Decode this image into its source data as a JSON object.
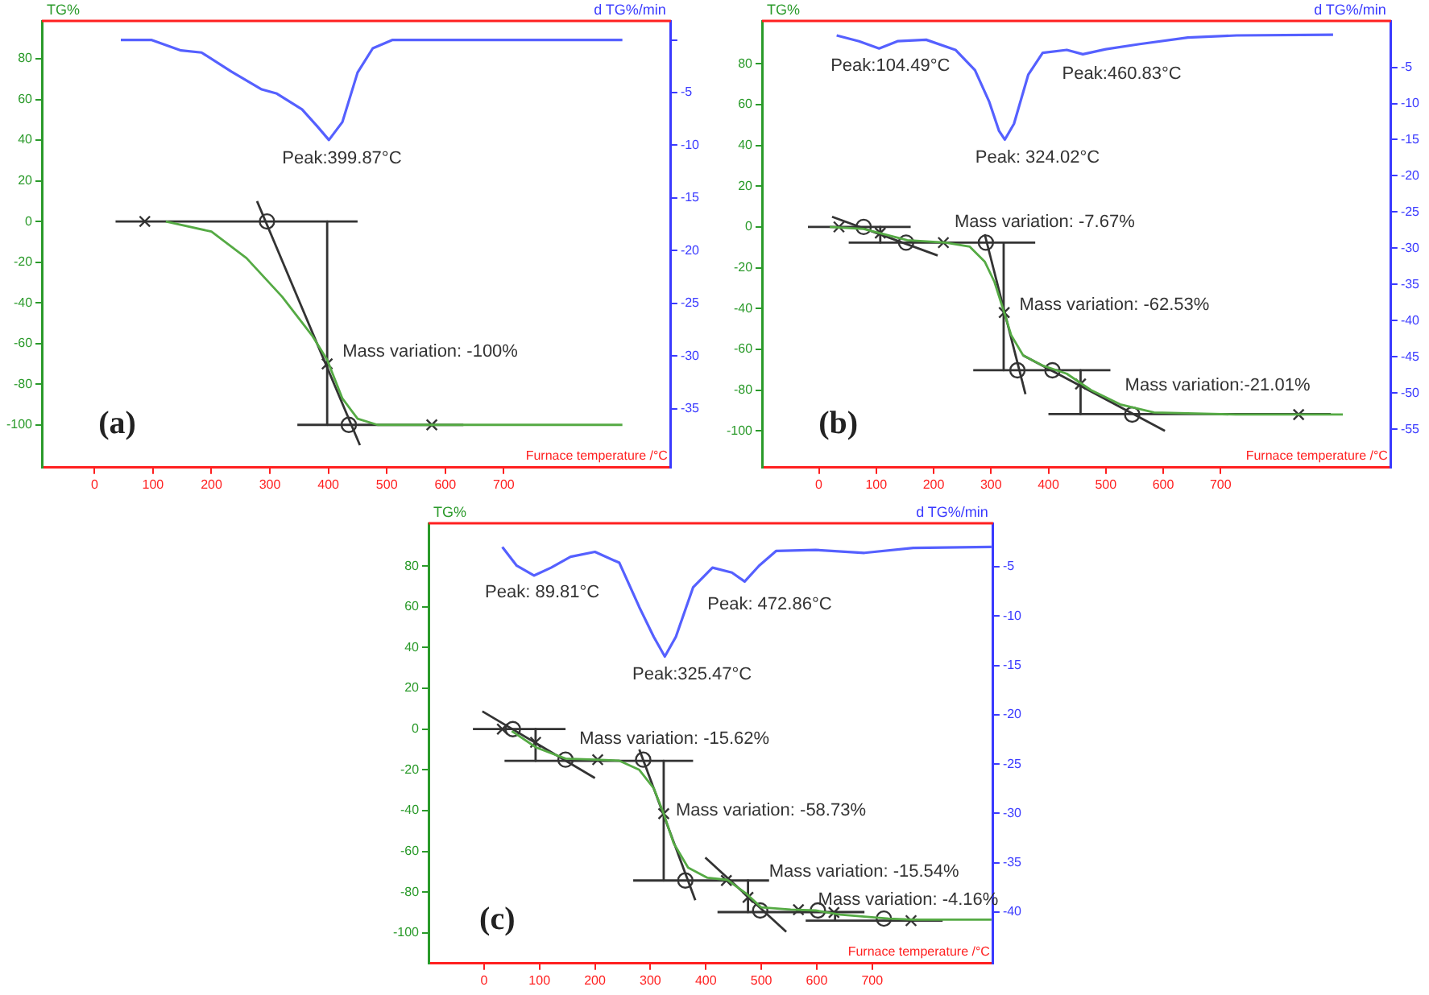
{
  "chart_data": [
    {
      "type": "line",
      "xlabel": "Furnace temperature /°C",
      "ylabel": "TG%",
      "y2label": "d TG%/min",
      "xlim": [
        -90,
        986
      ],
      "xticks": [
        0,
        100,
        200,
        300,
        400,
        500,
        600,
        700
      ],
      "ylim": [
        -121,
        98.6
      ],
      "yticks": [
        80,
        60,
        40,
        20,
        0,
        -20,
        -40,
        -60,
        -80,
        -100
      ],
      "y2lim": [
        -40.6,
        1.8
      ],
      "y2ticks": [
        {
          "value": 0,
          "label": null
        },
        -5,
        -10,
        -15,
        -20,
        -25,
        -30,
        -35
      ],
      "grid": false,
      "legend": false,
      "series": [
        {
          "type": "line",
          "axis": "y2",
          "color": "#5560ff",
          "x": [
            45,
            97,
            148,
            183,
            234,
            286,
            312,
            355,
            381,
            401,
            424,
            450,
            476,
            510,
            903
          ],
          "values": [
            0,
            0,
            -1.0,
            -1.2,
            -3.0,
            -4.7,
            -5.1,
            -6.6,
            -8.2,
            -9.5,
            -7.8,
            -3.1,
            -0.8,
            0,
            0
          ]
        },
        {
          "type": "line",
          "color": "#55aa44",
          "x": [
            122,
            200,
            260,
            321,
            372,
            398,
            424,
            450,
            484,
            903
          ],
          "values": [
            0,
            -5,
            -18,
            -37,
            -56,
            -68,
            -87,
            -97,
            -100,
            -100
          ]
        },
        {
          "type": "line",
          "color": "#333333",
          "x": [
            36,
            450
          ],
          "values": [
            0,
            0
          ]
        },
        {
          "type": "line",
          "color": "#333333",
          "x": [
            347,
            631
          ],
          "values": [
            -100,
            -100
          ]
        },
        {
          "type": "line",
          "color": "#333333",
          "x": [
            278,
            454
          ],
          "values": [
            10,
            -110
          ]
        },
        {
          "type": "line",
          "color": "#333333",
          "x": [
            398,
            398
          ],
          "values": [
            0,
            -100
          ]
        },
        {
          "type": "scatter",
          "marker": "cross",
          "color": "#333333",
          "x": [
            86,
            398,
            577
          ],
          "values": [
            0,
            -70,
            -100
          ]
        },
        {
          "type": "scatter",
          "marker": "circle",
          "color": "#333333",
          "x": [
            295,
            435
          ],
          "values": [
            0,
            -100
          ]
        }
      ],
      "annotations": [
        "Peak:399.87°C",
        "Mass variation: -100%",
        "(a)"
      ]
    },
    {
      "type": "line",
      "xlabel": "Furnace temperature /°C",
      "ylabel": "TG%",
      "y2label": "d TG%/min",
      "xlim": [
        -99,
        997
      ],
      "xticks": [
        0,
        100,
        200,
        300,
        400,
        500,
        600,
        700
      ],
      "ylim": [
        -118,
        101
      ],
      "yticks": [
        80,
        60,
        40,
        20,
        0,
        -20,
        -40,
        -60,
        -80,
        -100
      ],
      "y2lim": [
        -60.3,
        1.4
      ],
      "y2ticks": [
        -5,
        -10,
        -15,
        -20,
        -25,
        -30,
        -35,
        -40,
        -45,
        -50,
        -55
      ],
      "grid": false,
      "legend": false,
      "series": [
        {
          "type": "line",
          "axis": "y2",
          "color": "#5560ff",
          "x": [
            31,
            70,
            105,
            137,
            187,
            238,
            272,
            297,
            314,
            324,
            340,
            365,
            390,
            432,
            460,
            500,
            559,
            643,
            728,
            896
          ],
          "values": [
            -0.6,
            -1.4,
            -2.4,
            -1.4,
            -1.2,
            -2.6,
            -5.4,
            -9.8,
            -13.8,
            -15,
            -12.8,
            -6.0,
            -3.0,
            -2.6,
            -3.2,
            -2.5,
            -1.8,
            -0.9,
            -0.6,
            -0.5
          ]
        },
        {
          "type": "line",
          "color": "#55aa44",
          "x": [
            19,
            78,
            154,
            221,
            263,
            289,
            306,
            323,
            335,
            356,
            390,
            432,
            474,
            525,
            584,
            726,
            913
          ],
          "values": [
            0,
            -1,
            -6.5,
            -7.7,
            -9.7,
            -17,
            -27,
            -42,
            -53,
            -63,
            -68,
            -72,
            -80,
            -87,
            -91,
            -92,
            -92
          ]
        },
        {
          "type": "line",
          "color": "#333333",
          "x": [
            -19,
            160
          ],
          "values": [
            0,
            0
          ]
        },
        {
          "type": "line",
          "color": "#333333",
          "x": [
            52,
            377
          ],
          "values": [
            -7.7,
            -7.7
          ]
        },
        {
          "type": "line",
          "color": "#333333",
          "x": [
            269,
            508
          ],
          "values": [
            -70.3,
            -70.3
          ]
        },
        {
          "type": "line",
          "color": "#333333",
          "x": [
            400,
            892
          ],
          "values": [
            -91.8,
            -91.8
          ]
        },
        {
          "type": "line",
          "color": "#333333",
          "x": [
            23,
            207
          ],
          "values": [
            5,
            -14
          ]
        },
        {
          "type": "line",
          "color": "#333333",
          "x": [
            289,
            360
          ],
          "values": [
            -3.6,
            -82
          ]
        },
        {
          "type": "line",
          "color": "#333333",
          "x": [
            356,
            603
          ],
          "values": [
            -63,
            -100
          ]
        },
        {
          "type": "line",
          "color": "#333333",
          "x": [
            107,
            107
          ],
          "values": [
            0,
            -7.7
          ]
        },
        {
          "type": "line",
          "color": "#333333",
          "x": [
            322,
            322
          ],
          "values": [
            -7.7,
            -70.3
          ]
        },
        {
          "type": "line",
          "color": "#333333",
          "x": [
            456,
            456
          ],
          "values": [
            -70.3,
            -91.8
          ]
        },
        {
          "type": "scatter",
          "marker": "cross",
          "color": "#333333",
          "x": [
            35,
            107,
            217,
            323,
            456,
            836
          ],
          "values": [
            0,
            -3,
            -7.7,
            -42,
            -77,
            -92
          ]
        },
        {
          "type": "scatter",
          "marker": "circle",
          "color": "#333333",
          "x": [
            78,
            152,
            291,
            346,
            407,
            546
          ],
          "values": [
            0,
            -7.7,
            -7.7,
            -70.3,
            -70.3,
            -92
          ]
        }
      ],
      "annotations": [
        "Peak:104.49°C",
        "Peak: 324.02°C",
        "Peak:460.83°C",
        "Mass variation: -7.67%",
        "Mass variation: -62.53%",
        "Mass variation:-21.01%",
        "(b)"
      ]
    },
    {
      "type": "line",
      "xlabel": "Furnace temperature /°C",
      "ylabel": "TG%",
      "y2label": "d TG%/min",
      "xlim": [
        -100,
        918
      ],
      "xticks": [
        0,
        100,
        200,
        300,
        400,
        500,
        600,
        700
      ],
      "ylim": [
        -115,
        101
      ],
      "yticks": [
        80,
        60,
        40,
        20,
        0,
        -20,
        -40,
        -60,
        -80,
        -100
      ],
      "y2lim": [
        -45.2,
        -0.6
      ],
      "y2ticks": [
        -5,
        -10,
        -15,
        -20,
        -25,
        -30,
        -35,
        -40
      ],
      "grid": false,
      "legend": false,
      "series": [
        {
          "type": "line",
          "axis": "y2",
          "color": "#5560ff",
          "x": [
            33,
            59,
            90,
            121,
            156,
            200,
            244,
            280,
            306,
            326,
            346,
            377,
            412,
            447,
            470,
            496,
            527,
            598,
            686,
            774,
            915
          ],
          "values": [
            -3.0,
            -4.9,
            -5.9,
            -5.1,
            -4.0,
            -3.5,
            -4.6,
            -9.1,
            -12.1,
            -14.1,
            -12.1,
            -7.1,
            -5.1,
            -5.6,
            -6.5,
            -4.9,
            -3.4,
            -3.3,
            -3.6,
            -3.1,
            -3.0
          ]
        },
        {
          "type": "line",
          "color": "#55aa44",
          "x": [
            50,
            94,
            147,
            200,
            244,
            280,
            306,
            324,
            342,
            368,
            403,
            439,
            474,
            500,
            553,
            598,
            642,
            730,
            774,
            915
          ],
          "values": [
            -1,
            -9,
            -14.5,
            -15,
            -15.5,
            -20,
            -29,
            -41.5,
            -56,
            -68,
            -73,
            -74,
            -81,
            -87.5,
            -88.6,
            -89,
            -91,
            -93,
            -93.5,
            -93.5
          ]
        },
        {
          "type": "line",
          "color": "#333333",
          "x": [
            -20,
            147
          ],
          "values": [
            0,
            0
          ]
        },
        {
          "type": "line",
          "color": "#333333",
          "x": [
            37,
            377
          ],
          "values": [
            -15.6,
            -15.6
          ]
        },
        {
          "type": "line",
          "color": "#333333",
          "x": [
            269,
            514
          ],
          "values": [
            -74.3,
            -74.3
          ]
        },
        {
          "type": "line",
          "color": "#333333",
          "x": [
            421,
            686
          ],
          "values": [
            -89.8,
            -89.8
          ]
        },
        {
          "type": "line",
          "color": "#333333",
          "x": [
            580,
            827
          ],
          "values": [
            -94,
            -94
          ]
        },
        {
          "type": "line",
          "color": "#333333",
          "x": [
            -3,
            200
          ],
          "values": [
            8.7,
            -24
          ]
        },
        {
          "type": "line",
          "color": "#333333",
          "x": [
            280,
            381
          ],
          "values": [
            -10,
            -84
          ]
        },
        {
          "type": "line",
          "color": "#333333",
          "x": [
            399,
            545
          ],
          "values": [
            -63,
            -99.5
          ]
        },
        {
          "type": "line",
          "color": "#333333",
          "x": [
            93,
            93
          ],
          "values": [
            0,
            -15.6
          ]
        },
        {
          "type": "line",
          "color": "#333333",
          "x": [
            324,
            324
          ],
          "values": [
            -15.6,
            -74.3
          ]
        },
        {
          "type": "line",
          "color": "#333333",
          "x": [
            476,
            476
          ],
          "values": [
            -74.3,
            -89.8
          ]
        },
        {
          "type": "line",
          "color": "#333333",
          "x": [
            633,
            633
          ],
          "values": [
            -89.8,
            -94
          ]
        },
        {
          "type": "scatter",
          "marker": "cross",
          "color": "#333333",
          "x": [
            33,
            93,
            205,
            324,
            437,
            476,
            567,
            631,
            770
          ],
          "values": [
            0,
            -6.5,
            -15,
            -41.5,
            -74.3,
            -82.6,
            -88.6,
            -90,
            -94
          ]
        },
        {
          "type": "scatter",
          "marker": "circle",
          "color": "#333333",
          "x": [
            52,
            147,
            287,
            363,
            498,
            602,
            721
          ],
          "values": [
            0,
            -15,
            -15,
            -74.3,
            -89,
            -89,
            -93
          ]
        }
      ],
      "annotations": [
        "Peak: 89.81°C",
        "Peak:325.47°C",
        "Peak: 472.86°C",
        "Mass variation: -15.62%",
        "Mass variation: -58.73%",
        "Mass variation: -15.54%",
        "Mass variation: -4.16%",
        "(c)"
      ]
    }
  ]
}
